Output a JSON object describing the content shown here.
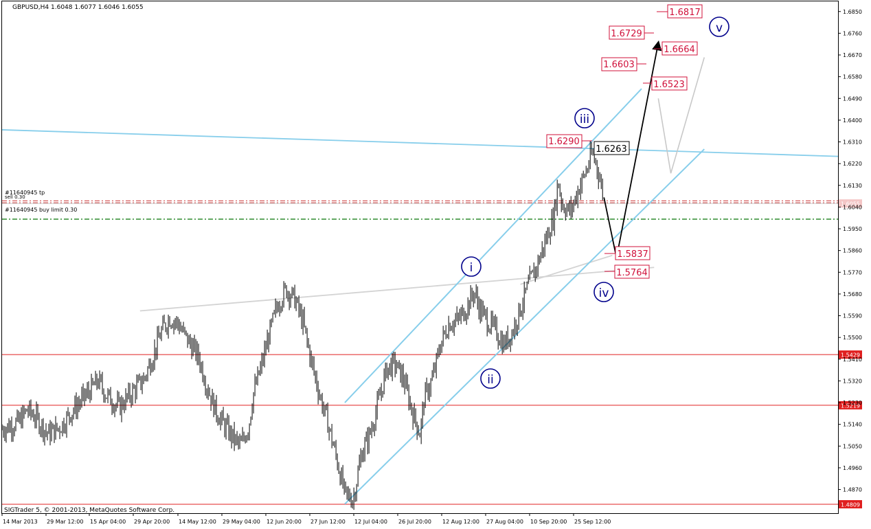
{
  "header": {
    "symbol_info": "GBPUSD,H4  1.6048 1.6077 1.6046 1.6055"
  },
  "footer": {
    "copyright": "SIGTrader 5, © 2001-2013, MetaQuotes Software Corp."
  },
  "order_labels": {
    "tp": "#11640945 tp",
    "sell": "sell 0.30",
    "buy_limit": "#11640945 buy limit 0.30"
  },
  "colors": {
    "candles": "#000000",
    "channel": "#87ceeb",
    "support_line": "#d3d3d3",
    "horizontal": "#e02020",
    "order_line_green": "#2e8b2e",
    "order_line_red": "#cc3333",
    "target_box": "#d0103a",
    "wave_label": "#00008b",
    "projection": "#000000",
    "projection_alt": "#c8c8c8",
    "current_price_bg": "#f4c6c6",
    "level_price_bg": "#e02020"
  },
  "chart_data": {
    "type": "candlestick",
    "instrument": "GBPUSD",
    "timeframe": "H4",
    "last_bar": {
      "open": 1.6048,
      "high": 1.6077,
      "low": 1.6046,
      "close": 1.6055
    },
    "ylim": [
      1.4772,
      1.6892
    ],
    "y_ticks": [
      1.685,
      1.676,
      1.667,
      1.658,
      1.649,
      1.64,
      1.631,
      1.622,
      1.613,
      1.604,
      1.595,
      1.586,
      1.577,
      1.568,
      1.559,
      1.55,
      1.541,
      1.532,
      1.523,
      1.514,
      1.505,
      1.496,
      1.487
    ],
    "x_labels": [
      "14 Mar 2013",
      "29 Mar 12:00",
      "15 Apr 04:00",
      "29 Apr 20:00",
      "14 May 12:00",
      "29 May 04:00",
      "12 Jun 20:00",
      "27 Jun 12:00",
      "12 Jul 04:00",
      "26 Jul 20:00",
      "12 Aug 12:00",
      "27 Aug 04:00",
      "10 Sep 20:00",
      "25 Sep 12:00"
    ],
    "price_path": [
      [
        0,
        1.512
      ],
      [
        0.02,
        1.515
      ],
      [
        0.03,
        1.52
      ],
      [
        0.04,
        1.517
      ],
      [
        0.055,
        1.51
      ],
      [
        0.07,
        1.513
      ],
      [
        0.085,
        1.52
      ],
      [
        0.1,
        1.526
      ],
      [
        0.115,
        1.532
      ],
      [
        0.125,
        1.526
      ],
      [
        0.14,
        1.521
      ],
      [
        0.155,
        1.527
      ],
      [
        0.17,
        1.533
      ],
      [
        0.18,
        1.542
      ],
      [
        0.19,
        1.552
      ],
      [
        0.2,
        1.558
      ],
      [
        0.21,
        1.556
      ],
      [
        0.22,
        1.55
      ],
      [
        0.235,
        1.542
      ],
      [
        0.245,
        1.53
      ],
      [
        0.255,
        1.52
      ],
      [
        0.265,
        1.514
      ],
      [
        0.275,
        1.509
      ],
      [
        0.285,
        1.505
      ],
      [
        0.295,
        1.513
      ],
      [
        0.3,
        1.526
      ],
      [
        0.31,
        1.538
      ],
      [
        0.32,
        1.552
      ],
      [
        0.33,
        1.564
      ],
      [
        0.34,
        1.57
      ],
      [
        0.35,
        1.566
      ],
      [
        0.36,
        1.556
      ],
      [
        0.37,
        1.54
      ],
      [
        0.38,
        1.526
      ],
      [
        0.39,
        1.514
      ],
      [
        0.4,
        1.5
      ],
      [
        0.41,
        1.485
      ],
      [
        0.42,
        1.483
      ],
      [
        0.43,
        1.502
      ],
      [
        0.44,
        1.51
      ],
      [
        0.45,
        1.523
      ],
      [
        0.46,
        1.537
      ],
      [
        0.47,
        1.539
      ],
      [
        0.48,
        1.533
      ],
      [
        0.49,
        1.52
      ],
      [
        0.5,
        1.51
      ],
      [
        0.505,
        1.525
      ],
      [
        0.515,
        1.533
      ],
      [
        0.525,
        1.548
      ],
      [
        0.535,
        1.556
      ],
      [
        0.545,
        1.557
      ],
      [
        0.555,
        1.562
      ],
      [
        0.565,
        1.569
      ],
      [
        0.57,
        1.563
      ],
      [
        0.58,
        1.557
      ],
      [
        0.59,
        1.553
      ],
      [
        0.6,
        1.547
      ],
      [
        0.61,
        1.552
      ],
      [
        0.62,
        1.562
      ],
      [
        0.63,
        1.572
      ],
      [
        0.64,
        1.58
      ],
      [
        0.65,
        1.59
      ],
      [
        0.66,
        1.6
      ],
      [
        0.665,
        1.615
      ],
      [
        0.67,
        1.605
      ],
      [
        0.68,
        1.602
      ],
      [
        0.69,
        1.612
      ],
      [
        0.7,
        1.62
      ],
      [
        0.705,
        1.626
      ],
      [
        0.71,
        1.623
      ],
      [
        0.72,
        1.608
      ]
    ],
    "wave_labels": [
      "i",
      "ii",
      "iii",
      "iv",
      "v"
    ],
    "target_levels": [
      "1.6817",
      "1.6729",
      "1.6664",
      "1.6603",
      "1.6523",
      "1.6290",
      "1.5837",
      "1.5764"
    ],
    "current_price_label": "1.6263",
    "horizontal_levels": [
      1.5429,
      1.5219,
      1.4809
    ],
    "horizontal_level_labels": [
      "1.5429",
      "1.5219",
      "1.4809"
    ],
    "current_price": 1.6055,
    "current_price_axis_label": "1.6055",
    "order_lines": [
      1.6066,
      1.6058,
      1.599
    ],
    "channel_lines": [
      {
        "from": [
          0.41,
          1.523
        ],
        "to": [
          0.765,
          1.653
        ]
      },
      {
        "from": [
          0.41,
          1.481
        ],
        "to": [
          0.84,
          1.628
        ]
      }
    ],
    "trend_lines": [
      {
        "color_key": "channel",
        "from": [
          0,
          1.636
        ],
        "to": [
          1,
          1.625
        ]
      },
      {
        "color_key": "support_line",
        "from": [
          0.165,
          1.561
        ],
        "to": [
          0.78,
          1.579
        ]
      },
      {
        "color_key": "support_line",
        "from": [
          0.62,
          1.572
        ],
        "to": [
          0.73,
          1.584
        ]
      }
    ],
    "projection_paths": [
      {
        "color_key": "projection",
        "arrow": true,
        "points": [
          [
            0.72,
            1.608
          ],
          [
            0.735,
            1.583
          ],
          [
            0.785,
            1.672
          ]
        ]
      },
      {
        "color_key": "projection_alt",
        "arrow": false,
        "points": [
          [
            0.785,
            1.649
          ],
          [
            0.8,
            1.618
          ],
          [
            0.84,
            1.666
          ]
        ]
      }
    ],
    "grid": false,
    "legend": "none"
  }
}
